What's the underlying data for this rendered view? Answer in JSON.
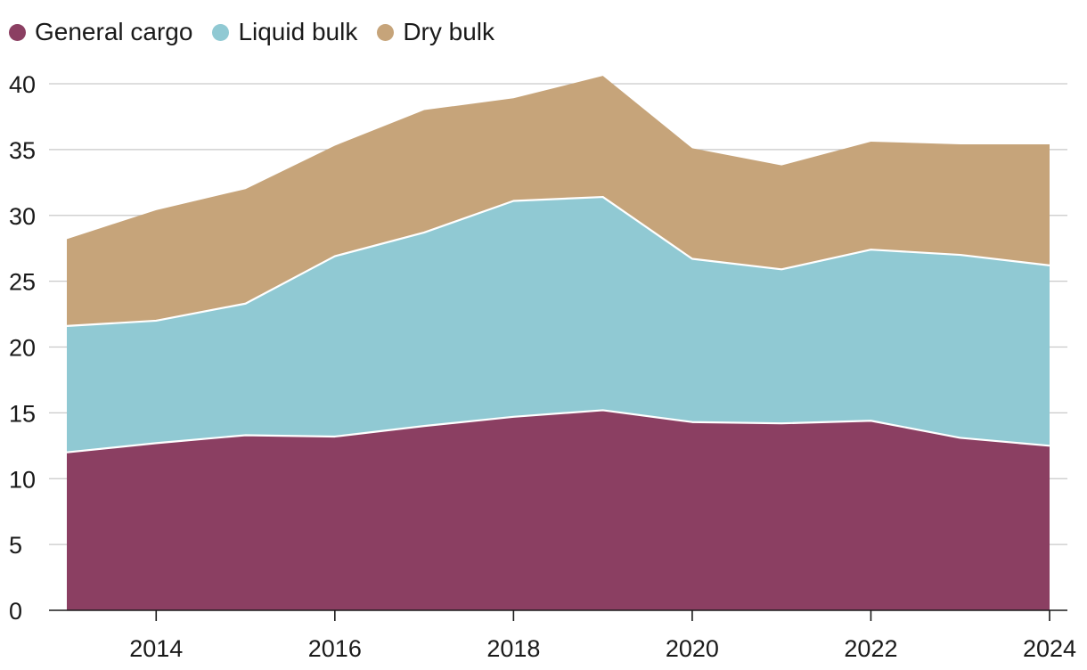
{
  "chart_data": {
    "type": "area",
    "stacked": true,
    "x": [
      2013,
      2014,
      2015,
      2016,
      2017,
      2018,
      2019,
      2020,
      2021,
      2022,
      2023,
      2024
    ],
    "series": [
      {
        "name": "General cargo",
        "color": "#8b3f62",
        "values": [
          12.0,
          12.7,
          13.3,
          13.2,
          14.0,
          14.7,
          15.2,
          14.3,
          14.2,
          14.4,
          13.1,
          12.5
        ]
      },
      {
        "name": "Liquid bulk",
        "color": "#90c9d3",
        "values": [
          9.6,
          9.3,
          10.0,
          13.7,
          14.7,
          16.4,
          16.2,
          12.4,
          11.7,
          13.0,
          13.9,
          13.7
        ]
      },
      {
        "name": "Dry bulk",
        "color": "#c6a47a",
        "values": [
          6.6,
          8.4,
          8.7,
          8.4,
          9.3,
          7.8,
          9.2,
          8.4,
          7.9,
          8.2,
          8.4,
          9.2
        ]
      }
    ],
    "xticks": [
      "2014",
      "2016",
      "2018",
      "2020",
      "2022",
      "2024"
    ],
    "xtick_values": [
      2014,
      2016,
      2018,
      2020,
      2022,
      2024
    ],
    "yticks": [
      "0",
      "5",
      "10",
      "15",
      "20",
      "25",
      "30",
      "35",
      "40"
    ],
    "ytick_values": [
      0,
      5,
      10,
      15,
      20,
      25,
      30,
      35,
      40
    ],
    "ylim": [
      0,
      40
    ],
    "xlim": [
      2013,
      2024
    ],
    "grid": true,
    "legend_position": "top-left",
    "title": "",
    "xlabel": "",
    "ylabel": ""
  }
}
